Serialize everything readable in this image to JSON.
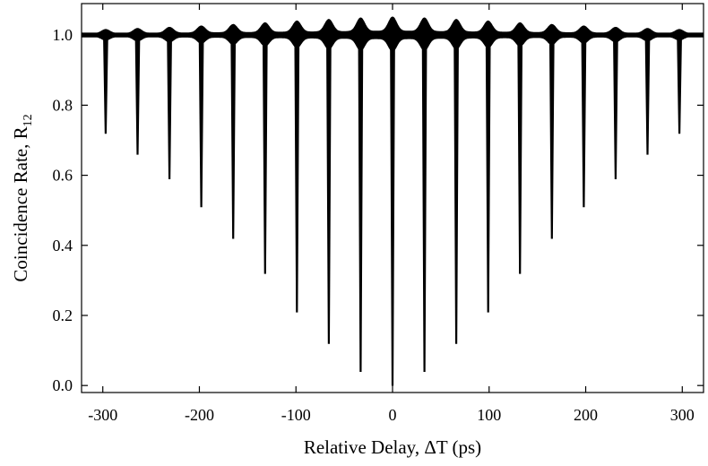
{
  "chart_data": {
    "type": "line",
    "xlabel": "Relative Delay, ΔT (ps)",
    "ylabel_main": "Coincidence Rate, R",
    "ylabel_sub": "12",
    "xlim": [
      -322,
      322
    ],
    "ylim": [
      -0.02,
      1.09
    ],
    "x_ticks": [
      -300,
      -200,
      -100,
      0,
      100,
      200,
      300
    ],
    "x_tick_labels": [
      "-300",
      "-200",
      "-100",
      "0",
      "100",
      "200",
      "300"
    ],
    "y_ticks": [
      0.0,
      0.2,
      0.4,
      0.6,
      0.8,
      1.0
    ],
    "y_tick_labels": [
      "0.0",
      "0.2",
      "0.4",
      "0.6",
      "0.8",
      "1.0"
    ],
    "baseline": 1.0,
    "dip_period_ps": 33,
    "dips": {
      "x": [
        -297,
        -264,
        -231,
        -198,
        -165,
        -132,
        -99,
        -66,
        -33,
        0,
        33,
        66,
        99,
        132,
        165,
        198,
        231,
        264,
        297
      ],
      "y": [
        0.72,
        0.66,
        0.59,
        0.51,
        0.42,
        0.32,
        0.21,
        0.12,
        0.04,
        0.0,
        0.04,
        0.12,
        0.21,
        0.32,
        0.42,
        0.51,
        0.59,
        0.66,
        0.72
      ]
    },
    "grid": false,
    "color": "#000000"
  }
}
